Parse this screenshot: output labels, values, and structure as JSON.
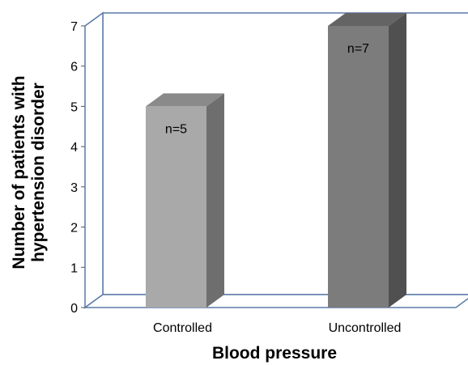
{
  "chart_data": {
    "type": "bar",
    "categories": [
      "Controlled",
      "Uncontrolled"
    ],
    "values": [
      5,
      7
    ],
    "data_labels": [
      "n=5",
      "n=7"
    ],
    "title": "",
    "xlabel": "Blood pressure",
    "ylabel": "Number of patients with hypertension disorder",
    "ylabel_lines": [
      "Number of patients with",
      "hypertension disorder"
    ],
    "ylim": [
      0,
      7
    ],
    "yticks": [
      "0",
      "1",
      "2",
      "3",
      "4",
      "5",
      "6",
      "7"
    ],
    "grid": false,
    "legend": "none",
    "style": "3d",
    "colors": {
      "bars": [
        "#a9a9a9",
        "#7c7c7c"
      ],
      "bar_sides": [
        "#6e6e6e",
        "#505050"
      ],
      "bar_tops": [
        "#8a8a8a",
        "#646464"
      ],
      "wall_border": "#5b7aa8"
    }
  }
}
